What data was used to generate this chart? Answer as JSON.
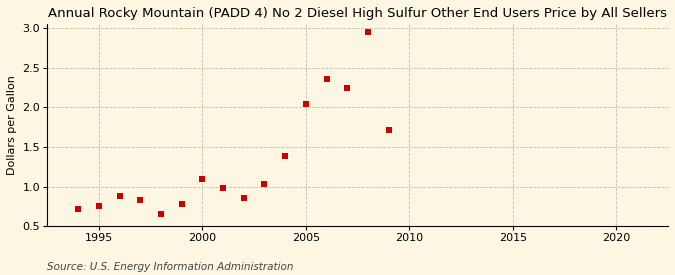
{
  "title": "Annual Rocky Mountain (PADD 4) No 2 Diesel High Sulfur Other End Users Price by All Sellers",
  "ylabel": "Dollars per Gallon",
  "source": "Source: U.S. Energy Information Administration",
  "years": [
    1994,
    1995,
    1996,
    1997,
    1998,
    1999,
    2000,
    2001,
    2002,
    2003,
    2004,
    2005,
    2006,
    2007,
    2008,
    2009
  ],
  "values": [
    0.72,
    0.76,
    0.88,
    0.83,
    0.65,
    0.78,
    1.1,
    0.98,
    0.86,
    1.03,
    1.39,
    2.04,
    2.35,
    2.24,
    2.95,
    1.71
  ],
  "marker_color": "#cc0000",
  "background_color": "#fdf6e3",
  "grid_color": "#999999",
  "xlim": [
    1992.5,
    2022.5
  ],
  "ylim": [
    0.5,
    3.05
  ],
  "xticks": [
    1995,
    2000,
    2005,
    2010,
    2015,
    2020
  ],
  "yticks": [
    0.5,
    1.0,
    1.5,
    2.0,
    2.5,
    3.0
  ],
  "title_fontsize": 9.5,
  "label_fontsize": 8,
  "tick_fontsize": 8,
  "source_fontsize": 7.5
}
